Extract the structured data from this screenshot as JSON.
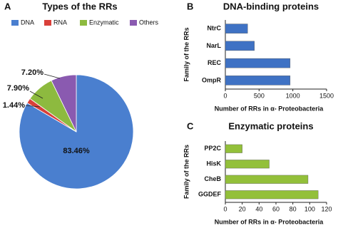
{
  "chart_data": [
    {
      "type": "pie",
      "panel": "A",
      "title": "Types of the RRs",
      "categories": [
        "DNA",
        "RNA",
        "Enzymatic",
        "Others"
      ],
      "values": [
        83.46,
        1.44,
        7.9,
        7.2
      ],
      "value_labels": [
        "83.46%",
        "1.44%",
        "7.90%",
        "7.20%"
      ],
      "colors": [
        "#4a7fcf",
        "#d9403a",
        "#8dba3f",
        "#8a5ab0"
      ]
    },
    {
      "type": "barh",
      "panel": "B",
      "title": "DNA-binding proteins",
      "categories": [
        "NtrC",
        "NarL",
        "REC",
        "OmpR"
      ],
      "values": [
        330,
        430,
        960,
        960
      ],
      "color": "#3f72c4",
      "xlim": [
        0,
        1500
      ],
      "xticks": [
        0,
        500,
        1000,
        1500
      ],
      "xlabel": "Number of RRs in α- Proteobacteria",
      "ylabel": "Family of the RRs"
    },
    {
      "type": "barh",
      "panel": "C",
      "title": "Enzymatic proteins",
      "categories": [
        "PP2C",
        "HisK",
        "CheB",
        "GGDEF"
      ],
      "values": [
        20,
        52,
        98,
        110
      ],
      "color": "#93c03a",
      "xlim": [
        0,
        120
      ],
      "xticks": [
        0,
        20,
        40,
        60,
        80,
        100,
        120
      ],
      "xlabel": "Number of RRs in α- Proteobacteria",
      "ylabel": "Family of the RRs"
    }
  ]
}
